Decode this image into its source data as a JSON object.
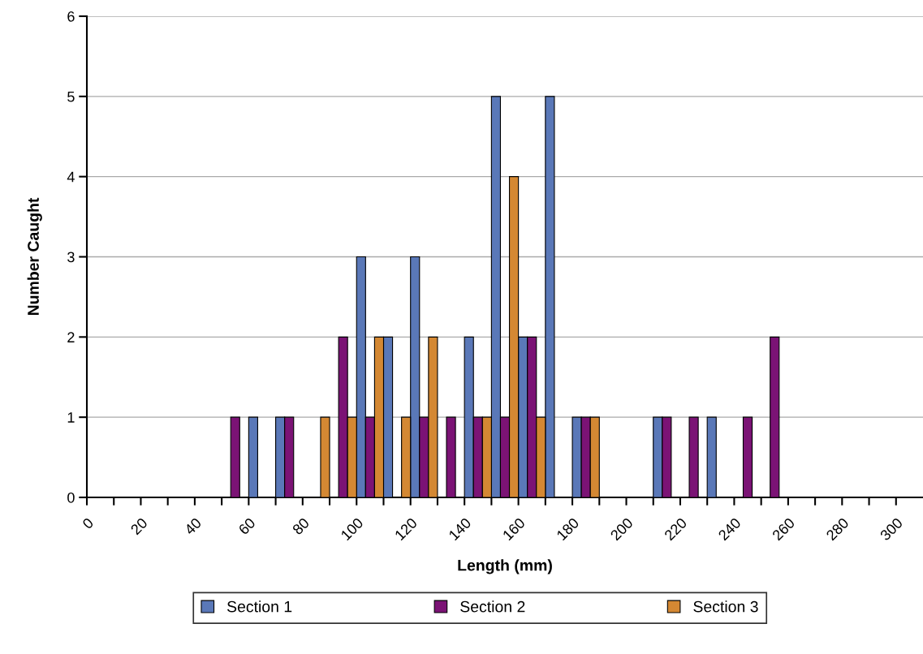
{
  "chart_data": {
    "type": "histogram",
    "xlabel": "Length (mm)",
    "ylabel": "Number Caught",
    "bins": [
      0,
      10,
      20,
      30,
      40,
      50,
      60,
      70,
      80,
      90,
      100,
      110,
      120,
      130,
      140,
      150,
      160,
      170,
      180,
      190,
      200,
      210,
      220,
      230,
      240,
      250,
      260,
      270,
      280,
      290,
      300,
      310
    ],
    "series": [
      {
        "name": "Section 1",
        "color": "#5a78b8",
        "values": [
          0,
          0,
          0,
          0,
          0,
          0,
          1,
          1,
          0,
          0,
          3,
          2,
          3,
          0,
          2,
          5,
          2,
          5,
          1,
          0,
          0,
          1,
          0,
          1,
          0,
          0,
          0,
          0,
          0,
          0,
          0
        ]
      },
      {
        "name": "Section 2",
        "color": "#7b1375",
        "values": [
          0,
          0,
          0,
          0,
          0,
          1,
          0,
          1,
          0,
          2,
          1,
          0,
          1,
          1,
          1,
          1,
          2,
          0,
          1,
          0,
          0,
          1,
          1,
          0,
          1,
          2,
          0,
          0,
          0,
          0,
          0
        ]
      },
      {
        "name": "Section 3",
        "color": "#d48833",
        "values": [
          0,
          0,
          0,
          0,
          0,
          0,
          0,
          0,
          1,
          1,
          2,
          1,
          2,
          0,
          1,
          4,
          1,
          0,
          1,
          0,
          0,
          0,
          0,
          0,
          0,
          0,
          0,
          0,
          0,
          0,
          0
        ]
      }
    ],
    "xlim": [
      0,
      310
    ],
    "xticks": [
      0,
      {
        "value": 10,
        "label": null
      },
      20,
      {
        "value": 30,
        "label": null
      },
      40,
      {
        "value": 50,
        "label": null
      },
      60,
      {
        "value": 70,
        "label": null
      },
      80,
      {
        "value": 90,
        "label": null
      },
      100,
      {
        "value": 110,
        "label": null
      },
      120,
      {
        "value": 130,
        "label": null
      },
      140,
      {
        "value": 150,
        "label": null
      },
      160,
      {
        "value": 170,
        "label": null
      },
      180,
      {
        "value": 190,
        "label": null
      },
      200,
      {
        "value": 210,
        "label": null
      },
      220,
      {
        "value": 230,
        "label": null
      },
      240,
      {
        "value": 250,
        "label": null
      },
      260,
      {
        "value": 270,
        "label": null
      },
      280,
      {
        "value": 290,
        "label": null
      },
      300
    ],
    "ylim": [
      0,
      6
    ],
    "yticks": [
      0,
      1,
      2,
      3,
      4,
      5,
      6
    ],
    "grid": "y",
    "legend": "bottom"
  }
}
